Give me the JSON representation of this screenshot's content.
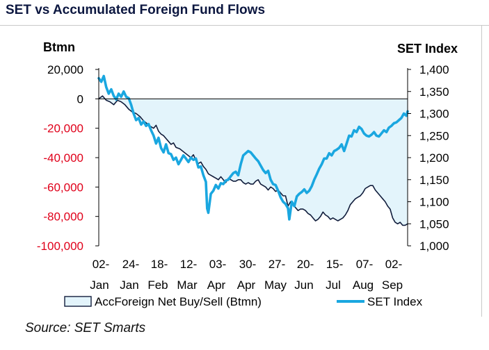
{
  "title": "SET vs Accumulated Foreign Fund Flows",
  "source": "Source: SET Smarts",
  "colors": {
    "flow_fill": "#e3f4fb",
    "flow_line": "#111d3c",
    "set_line": "#1aa7e0",
    "negative_tick": "#e0001a",
    "title": "#0c1740"
  },
  "chart_data": {
    "type": "line",
    "left_axis": {
      "label": "Btmn",
      "range": [
        -100000,
        20000
      ],
      "ticks": [
        20000,
        0,
        -20000,
        -40000,
        -60000,
        -80000,
        -100000
      ],
      "tick_labels": [
        "20,000",
        "0",
        "-20,000",
        "-40,000",
        "-60,000",
        "-80,000",
        "-100,000"
      ]
    },
    "right_axis": {
      "label": "SET Index",
      "range": [
        1000,
        1400
      ],
      "ticks": [
        1400,
        1350,
        1300,
        1250,
        1200,
        1150,
        1100,
        1050,
        1000
      ],
      "tick_labels": [
        "1,400",
        "1,350",
        "1,300",
        "1,250",
        "1,200",
        "1,150",
        "1,100",
        "1,050",
        "1,000"
      ]
    },
    "x_ticks": [
      {
        "day": "02-",
        "month": "Jan"
      },
      {
        "day": "24-",
        "month": "Jan"
      },
      {
        "day": "18-",
        "month": "Feb"
      },
      {
        "day": "12-",
        "month": "Mar"
      },
      {
        "day": "03-",
        "month": "Apr"
      },
      {
        "day": "30-",
        "month": "Apr"
      },
      {
        "day": "27-",
        "month": "May"
      },
      {
        "day": "20-",
        "month": "Jun"
      },
      {
        "day": "15-",
        "month": "Jul"
      },
      {
        "day": "07-",
        "month": "Aug"
      },
      {
        "day": "02-",
        "month": "Sep"
      }
    ],
    "x_range": [
      0,
      248
    ],
    "series": [
      {
        "name": "AccForeign Net Buy/Sell (Btmn)",
        "kind": "area",
        "axis": "left",
        "points": [
          [
            0,
            0
          ],
          [
            3,
            2000
          ],
          [
            6,
            -1000
          ],
          [
            9,
            -2000
          ],
          [
            12,
            -4000
          ],
          [
            15,
            -1000
          ],
          [
            18,
            -2000
          ],
          [
            21,
            -4000
          ],
          [
            24,
            -7000
          ],
          [
            27,
            -9000
          ],
          [
            30,
            -10000
          ],
          [
            33,
            -12000
          ],
          [
            36,
            -15000
          ],
          [
            39,
            -17000
          ],
          [
            42,
            -19000
          ],
          [
            44,
            -20000
          ],
          [
            46,
            -18000
          ],
          [
            48,
            -22000
          ],
          [
            50,
            -24000
          ],
          [
            52,
            -25000
          ],
          [
            54,
            -27000
          ],
          [
            56,
            -29000
          ],
          [
            58,
            -31000
          ],
          [
            60,
            -30000
          ],
          [
            62,
            -33000
          ],
          [
            65,
            -34000
          ],
          [
            68,
            -36000
          ],
          [
            71,
            -38000
          ],
          [
            74,
            -40000
          ],
          [
            76,
            -38000
          ],
          [
            78,
            -42000
          ],
          [
            80,
            -44000
          ],
          [
            82,
            -43000
          ],
          [
            84,
            -46000
          ],
          [
            86,
            -48000
          ],
          [
            88,
            -51000
          ],
          [
            90,
            -52000
          ],
          [
            92,
            -53000
          ],
          [
            94,
            -54000
          ],
          [
            96,
            -55000
          ],
          [
            98,
            -53000
          ],
          [
            100,
            -55000
          ],
          [
            102,
            -57000
          ],
          [
            104,
            -54000
          ],
          [
            106,
            -55000
          ],
          [
            108,
            -56000
          ],
          [
            110,
            -56000
          ],
          [
            112,
            -55000
          ],
          [
            114,
            -55000
          ],
          [
            116,
            -57000
          ],
          [
            118,
            -58000
          ],
          [
            120,
            -57000
          ],
          [
            122,
            -58000
          ],
          [
            124,
            -58000
          ],
          [
            126,
            -56000
          ],
          [
            128,
            -55000
          ],
          [
            130,
            -58000
          ],
          [
            132,
            -59000
          ],
          [
            134,
            -60000
          ],
          [
            136,
            -62000
          ],
          [
            138,
            -60000
          ],
          [
            140,
            -61000
          ],
          [
            142,
            -63000
          ],
          [
            144,
            -62000
          ],
          [
            146,
            -64000
          ],
          [
            148,
            -66000
          ],
          [
            150,
            -66000
          ],
          [
            152,
            -73000
          ],
          [
            154,
            -70000
          ],
          [
            156,
            -72000
          ],
          [
            158,
            -74000
          ],
          [
            160,
            -76000
          ],
          [
            162,
            -75000
          ],
          [
            164,
            -75000
          ],
          [
            166,
            -76000
          ],
          [
            168,
            -78000
          ],
          [
            170,
            -79000
          ],
          [
            172,
            -81000
          ],
          [
            174,
            -83000
          ],
          [
            176,
            -82000
          ],
          [
            178,
            -80000
          ],
          [
            180,
            -77000
          ],
          [
            182,
            -79000
          ],
          [
            184,
            -80000
          ],
          [
            186,
            -82000
          ],
          [
            188,
            -81000
          ],
          [
            190,
            -82000
          ],
          [
            192,
            -83000
          ],
          [
            194,
            -82000
          ],
          [
            196,
            -81000
          ],
          [
            198,
            -79000
          ],
          [
            200,
            -76000
          ],
          [
            202,
            -72000
          ],
          [
            204,
            -70000
          ],
          [
            206,
            -68000
          ],
          [
            208,
            -67000
          ],
          [
            210,
            -66000
          ],
          [
            212,
            -64000
          ],
          [
            214,
            -61000
          ],
          [
            216,
            -60000
          ],
          [
            218,
            -59000
          ],
          [
            220,
            -59000
          ],
          [
            222,
            -62000
          ],
          [
            224,
            -64000
          ],
          [
            226,
            -66000
          ],
          [
            228,
            -68000
          ],
          [
            230,
            -70000
          ],
          [
            232,
            -73000
          ],
          [
            234,
            -75000
          ],
          [
            236,
            -81000
          ],
          [
            238,
            -84000
          ],
          [
            240,
            -85000
          ],
          [
            242,
            -84000
          ],
          [
            244,
            -86000
          ],
          [
            246,
            -86000
          ],
          [
            248,
            -85000
          ]
        ]
      },
      {
        "name": "SET Index",
        "kind": "line",
        "axis": "right",
        "points": [
          [
            0,
            1380
          ],
          [
            2,
            1372
          ],
          [
            4,
            1385
          ],
          [
            6,
            1360
          ],
          [
            8,
            1345
          ],
          [
            10,
            1355
          ],
          [
            12,
            1340
          ],
          [
            14,
            1332
          ],
          [
            16,
            1345
          ],
          [
            18,
            1338
          ],
          [
            20,
            1350
          ],
          [
            22,
            1338
          ],
          [
            24,
            1335
          ],
          [
            26,
            1320
          ],
          [
            28,
            1300
          ],
          [
            30,
            1285
          ],
          [
            32,
            1290
          ],
          [
            34,
            1275
          ],
          [
            36,
            1282
          ],
          [
            38,
            1272
          ],
          [
            40,
            1276
          ],
          [
            42,
            1262
          ],
          [
            44,
            1250
          ],
          [
            46,
            1232
          ],
          [
            48,
            1245
          ],
          [
            50,
            1222
          ],
          [
            52,
            1212
          ],
          [
            54,
            1230
          ],
          [
            56,
            1210
          ],
          [
            58,
            1208
          ],
          [
            60,
            1195
          ],
          [
            62,
            1200
          ],
          [
            64,
            1185
          ],
          [
            66,
            1195
          ],
          [
            68,
            1205
          ],
          [
            70,
            1198
          ],
          [
            72,
            1190
          ],
          [
            74,
            1200
          ],
          [
            76,
            1195
          ],
          [
            78,
            1198
          ],
          [
            80,
            1178
          ],
          [
            82,
            1180
          ],
          [
            84,
            1160
          ],
          [
            86,
            1145
          ],
          [
            87,
            1085
          ],
          [
            88,
            1075
          ],
          [
            90,
            1118
          ],
          [
            92,
            1125
          ],
          [
            94,
            1138
          ],
          [
            96,
            1130
          ],
          [
            98,
            1142
          ],
          [
            100,
            1140
          ],
          [
            102,
            1148
          ],
          [
            104,
            1150
          ],
          [
            106,
            1158
          ],
          [
            108,
            1165
          ],
          [
            110,
            1168
          ],
          [
            112,
            1160
          ],
          [
            114,
            1185
          ],
          [
            116,
            1205
          ],
          [
            118,
            1210
          ],
          [
            120,
            1215
          ],
          [
            122,
            1212
          ],
          [
            124,
            1205
          ],
          [
            126,
            1198
          ],
          [
            128,
            1192
          ],
          [
            130,
            1182
          ],
          [
            132,
            1172
          ],
          [
            134,
            1165
          ],
          [
            136,
            1170
          ],
          [
            138,
            1150
          ],
          [
            140,
            1140
          ],
          [
            142,
            1138
          ],
          [
            144,
            1125
          ],
          [
            146,
            1110
          ],
          [
            148,
            1100
          ],
          [
            150,
            1095
          ],
          [
            152,
            1085
          ],
          [
            153,
            1060
          ],
          [
            155,
            1100
          ],
          [
            157,
            1090
          ],
          [
            159,
            1112
          ],
          [
            161,
            1118
          ],
          [
            163,
            1122
          ],
          [
            165,
            1128
          ],
          [
            167,
            1120
          ],
          [
            169,
            1125
          ],
          [
            171,
            1135
          ],
          [
            173,
            1150
          ],
          [
            175,
            1162
          ],
          [
            177,
            1175
          ],
          [
            179,
            1185
          ],
          [
            181,
            1198
          ],
          [
            183,
            1198
          ],
          [
            185,
            1210
          ],
          [
            187,
            1205
          ],
          [
            189,
            1215
          ],
          [
            191,
            1218
          ],
          [
            193,
            1222
          ],
          [
            195,
            1230
          ],
          [
            197,
            1215
          ],
          [
            199,
            1232
          ],
          [
            201,
            1250
          ],
          [
            203,
            1248
          ],
          [
            205,
            1262
          ],
          [
            207,
            1258
          ],
          [
            209,
            1270
          ],
          [
            211,
            1265
          ],
          [
            213,
            1255
          ],
          [
            215,
            1250
          ],
          [
            217,
            1248
          ],
          [
            219,
            1252
          ],
          [
            221,
            1258
          ],
          [
            223,
            1250
          ],
          [
            225,
            1248
          ],
          [
            227,
            1255
          ],
          [
            229,
            1262
          ],
          [
            231,
            1258
          ],
          [
            233,
            1268
          ],
          [
            235,
            1272
          ],
          [
            237,
            1278
          ],
          [
            239,
            1280
          ],
          [
            241,
            1285
          ],
          [
            243,
            1290
          ],
          [
            245,
            1300
          ],
          [
            247,
            1295
          ],
          [
            248,
            1305
          ]
        ]
      }
    ],
    "legend": {
      "placement": "bottom",
      "entries": [
        {
          "label": "AccForeign Net Buy/Sell (Btmn)",
          "symbol": "area"
        },
        {
          "label": "SET Index",
          "symbol": "line"
        }
      ]
    },
    "grid": false
  }
}
